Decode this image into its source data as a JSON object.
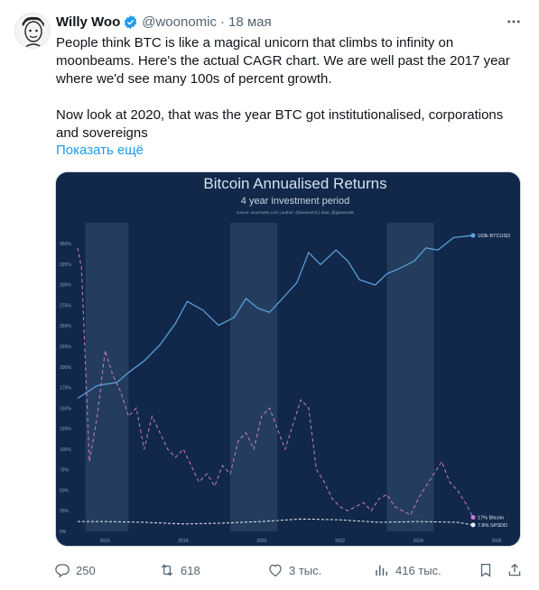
{
  "tweet": {
    "author_name": "Willy Woo",
    "handle": "@woonomic",
    "separator": "·",
    "date": "18 мая",
    "text_lines": [
      "People think BTC is like a magical unicorn that climbs to infinity on moonbeams. Here's the actual CAGR chart. We are well past the 2017 year where we'd see many 100s of percent growth.",
      "Now look at 2020, that was the year BTC got institutionalised, corporations and sovereigns"
    ],
    "show_more": "Показать ещё"
  },
  "chart": {
    "title": "Bitcoin Annualised Returns",
    "subtitle": "4 year investment period",
    "source_note": "source: woocharts.com | author: @woonomic | data: @glassnode",
    "y_ticks_pct": [
      "0%",
      "25%",
      "50%",
      "75%",
      "100%",
      "125%",
      "150%",
      "175%",
      "200%",
      "225%",
      "250%",
      "275%",
      "300%",
      "325%",
      "350%"
    ],
    "x_ticks": [
      "2016",
      "2018",
      "2020",
      "2022",
      "2024",
      "2026"
    ],
    "labels": {
      "btcusd": "103k BTCUSD",
      "bitcoin_return": "17% Bitcoin",
      "spx_return": "7.8% SPSDD"
    },
    "colors": {
      "background": "#12284a",
      "price_line": "#5ea6e0",
      "bitcoin_return": "#c67ad8",
      "spx_return": "#e8eef5",
      "highlight_band": "#2b4466"
    }
  },
  "chart_data": {
    "type": "line",
    "title": "Bitcoin Annualised Returns",
    "subtitle": "4 year investment period",
    "ylabel": "",
    "ylim": [
      0,
      360
    ],
    "x_range": [
      2015.3,
      2026.0
    ],
    "grid": false,
    "highlight_periods": [
      [
        2015.5,
        2016.6
      ],
      [
        2019.2,
        2020.4
      ],
      [
        2023.2,
        2024.4
      ]
    ],
    "series": [
      {
        "name": "Bitcoin",
        "style": "dashed",
        "x": [
          2015.3,
          2015.4,
          2015.6,
          2015.8,
          2016.0,
          2016.2,
          2016.4,
          2016.6,
          2016.8,
          2017.0,
          2017.2,
          2017.4,
          2017.6,
          2017.8,
          2018.0,
          2018.2,
          2018.4,
          2018.6,
          2018.8,
          2019.0,
          2019.2,
          2019.4,
          2019.6,
          2019.8,
          2020.0,
          2020.2,
          2020.4,
          2020.6,
          2020.8,
          2021.0,
          2021.2,
          2021.4,
          2021.6,
          2021.8,
          2022.0,
          2022.2,
          2022.4,
          2022.6,
          2022.8,
          2023.0,
          2023.2,
          2023.4,
          2023.6,
          2023.8,
          2024.0,
          2024.2,
          2024.4,
          2024.6,
          2024.8,
          2025.0,
          2025.2,
          2025.4
        ],
        "values": [
          345,
          320,
          85,
          140,
          220,
          190,
          170,
          140,
          150,
          100,
          140,
          120,
          100,
          90,
          100,
          80,
          60,
          70,
          55,
          80,
          70,
          110,
          120,
          100,
          140,
          150,
          125,
          100,
          130,
          160,
          150,
          75,
          60,
          40,
          30,
          25,
          30,
          35,
          25,
          40,
          45,
          30,
          25,
          20,
          40,
          55,
          70,
          85,
          60,
          50,
          35,
          17
        ]
      },
      {
        "name": "SPSDD",
        "style": "solid",
        "x": [
          2015.3,
          2016.0,
          2017.0,
          2018.0,
          2019.0,
          2020.0,
          2021.0,
          2022.0,
          2023.0,
          2024.0,
          2025.0,
          2025.4
        ],
        "values": [
          12,
          12,
          11,
          9,
          10,
          12,
          15,
          14,
          11,
          12,
          11,
          7.8
        ]
      }
    ],
    "price_series": {
      "name": "BTCUSD",
      "scale": "log",
      "x": [
        2015.3,
        2015.8,
        2016.3,
        2016.6,
        2017.0,
        2017.4,
        2017.8,
        2018.1,
        2018.5,
        2018.9,
        2019.3,
        2019.6,
        2019.9,
        2020.2,
        2020.5,
        2020.9,
        2021.2,
        2021.5,
        2021.9,
        2022.2,
        2022.5,
        2022.9,
        2023.2,
        2023.5,
        2023.9,
        2024.2,
        2024.5,
        2024.9,
        2025.2,
        2025.4
      ],
      "values": [
        250,
        400,
        450,
        650,
        1000,
        1800,
        4000,
        9000,
        6500,
        3700,
        5000,
        10000,
        7000,
        6000,
        9500,
        18000,
        55000,
        35000,
        60000,
        40000,
        20000,
        16500,
        25000,
        30000,
        40000,
        65000,
        60000,
        95000,
        100000,
        103000
      ]
    }
  },
  "actions": {
    "replies": "250",
    "retweets": "618",
    "likes": "3 тыс.",
    "views": "416 тыс."
  }
}
